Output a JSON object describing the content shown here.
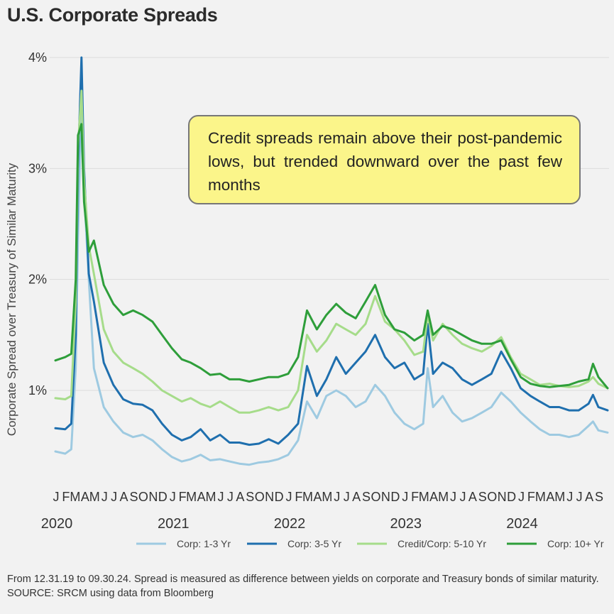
{
  "title": "U.S. Corporate Spreads",
  "annotation": "Credit spreads remain above their post-pandemic lows, but trended downward over the past few months",
  "footnote": "From 12.31.19 to 09.30.24. Spread is measured as difference between yields on corporate and Treasury bonds of similar maturity. SOURCE: SRCM using data from Bloomberg",
  "chart_data": {
    "type": "line",
    "title": "U.S. Corporate Spreads",
    "ylabel": "Corporate Spread over Treasury of Similar Maturity",
    "xlabel": "",
    "ylim": [
      0,
      4.1
    ],
    "yticks": [
      {
        "value": 1,
        "label": "1%"
      },
      {
        "value": 2,
        "label": "2%"
      },
      {
        "value": 3,
        "label": "3%"
      },
      {
        "value": 4,
        "label": "4%"
      }
    ],
    "x_range": [
      "2020-01-01",
      "2024-09-30"
    ],
    "month_ticks": [
      "J",
      "F",
      "M",
      "A",
      "M",
      "J",
      "J",
      "A",
      "S",
      "O",
      "N",
      "D",
      "J",
      "F",
      "M",
      "A",
      "M",
      "J",
      "J",
      "A",
      "S",
      "O",
      "N",
      "D",
      "J",
      "F",
      "M",
      "A",
      "M",
      "J",
      "J",
      "A",
      "S",
      "O",
      "N",
      "D",
      "J",
      "F",
      "M",
      "A",
      "M",
      "J",
      "J",
      "A",
      "S",
      "O",
      "N",
      "D",
      "J",
      "F",
      "M",
      "A",
      "M",
      "J",
      "J",
      "A",
      "S"
    ],
    "year_ticks": [
      "2020",
      "2021",
      "2022",
      "2023",
      "2024"
    ],
    "grid": "horizontal",
    "legend_position": "bottom",
    "x": [
      "2020-01-01",
      "2020-02-01",
      "2020-02-20",
      "2020-03-05",
      "2020-03-12",
      "2020-03-23",
      "2020-03-31",
      "2020-04-15",
      "2020-05-01",
      "2020-06-01",
      "2020-07-01",
      "2020-08-01",
      "2020-09-01",
      "2020-10-01",
      "2020-11-01",
      "2020-12-01",
      "2021-01-01",
      "2021-02-01",
      "2021-03-01",
      "2021-04-01",
      "2021-05-01",
      "2021-06-01",
      "2021-07-01",
      "2021-08-01",
      "2021-09-01",
      "2021-10-01",
      "2021-11-01",
      "2021-12-01",
      "2022-01-01",
      "2022-02-01",
      "2022-03-01",
      "2022-04-01",
      "2022-05-01",
      "2022-06-01",
      "2022-07-01",
      "2022-08-01",
      "2022-09-01",
      "2022-10-01",
      "2022-11-01",
      "2022-12-01",
      "2023-01-01",
      "2023-02-01",
      "2023-03-01",
      "2023-03-15",
      "2023-04-01",
      "2023-05-01",
      "2023-06-01",
      "2023-07-01",
      "2023-08-01",
      "2023-09-01",
      "2023-10-01",
      "2023-11-01",
      "2023-12-01",
      "2024-01-01",
      "2024-02-01",
      "2024-03-01",
      "2024-04-01",
      "2024-05-01",
      "2024-06-01",
      "2024-07-01",
      "2024-08-01",
      "2024-08-15",
      "2024-09-01",
      "2024-09-30"
    ],
    "series": [
      {
        "name": "Corp: 1-3 Yr",
        "color": "#9ecae1",
        "values": [
          0.45,
          0.43,
          0.47,
          1.2,
          2.4,
          3.6,
          2.8,
          2.0,
          1.2,
          0.85,
          0.72,
          0.62,
          0.58,
          0.6,
          0.55,
          0.47,
          0.4,
          0.36,
          0.38,
          0.42,
          0.37,
          0.38,
          0.36,
          0.34,
          0.33,
          0.35,
          0.36,
          0.38,
          0.42,
          0.55,
          0.9,
          0.75,
          0.95,
          1.0,
          0.95,
          0.85,
          0.9,
          1.05,
          0.95,
          0.8,
          0.7,
          0.65,
          0.7,
          1.2,
          0.85,
          0.95,
          0.8,
          0.72,
          0.75,
          0.8,
          0.85,
          0.98,
          0.9,
          0.8,
          0.72,
          0.65,
          0.6,
          0.6,
          0.58,
          0.6,
          0.68,
          0.72,
          0.64,
          0.62
        ]
      },
      {
        "name": "Corp: 3-5 Yr",
        "color": "#1f6fae",
        "values": [
          0.66,
          0.65,
          0.7,
          1.5,
          3.0,
          4.0,
          3.0,
          2.05,
          1.8,
          1.25,
          1.05,
          0.92,
          0.88,
          0.87,
          0.82,
          0.7,
          0.6,
          0.55,
          0.58,
          0.65,
          0.55,
          0.6,
          0.53,
          0.53,
          0.51,
          0.52,
          0.56,
          0.52,
          0.6,
          0.7,
          1.22,
          0.95,
          1.1,
          1.3,
          1.15,
          1.25,
          1.35,
          1.5,
          1.3,
          1.2,
          1.25,
          1.1,
          1.15,
          1.6,
          1.15,
          1.25,
          1.2,
          1.1,
          1.05,
          1.1,
          1.15,
          1.35,
          1.2,
          1.02,
          0.95,
          0.9,
          0.85,
          0.85,
          0.82,
          0.82,
          0.88,
          0.96,
          0.85,
          0.82
        ]
      },
      {
        "name": "Credit/Corp: 5-10 Yr",
        "color": "#a6dc8a",
        "values": [
          0.93,
          0.92,
          0.95,
          1.8,
          3.2,
          3.7,
          2.9,
          2.3,
          2.05,
          1.55,
          1.35,
          1.25,
          1.2,
          1.15,
          1.08,
          1.0,
          0.95,
          0.9,
          0.93,
          0.88,
          0.85,
          0.9,
          0.85,
          0.8,
          0.8,
          0.82,
          0.85,
          0.82,
          0.85,
          1.0,
          1.5,
          1.35,
          1.45,
          1.6,
          1.55,
          1.5,
          1.6,
          1.85,
          1.62,
          1.55,
          1.45,
          1.32,
          1.35,
          1.68,
          1.45,
          1.6,
          1.5,
          1.42,
          1.38,
          1.35,
          1.4,
          1.48,
          1.3,
          1.15,
          1.1,
          1.05,
          1.06,
          1.04,
          1.03,
          1.04,
          1.08,
          1.12,
          1.06,
          1.02
        ]
      },
      {
        "name": "Corp: 10+ Yr",
        "color": "#2e9e3a",
        "values": [
          1.27,
          1.3,
          1.33,
          2.0,
          3.3,
          3.4,
          2.7,
          2.25,
          2.35,
          1.95,
          1.78,
          1.68,
          1.72,
          1.68,
          1.62,
          1.5,
          1.38,
          1.28,
          1.25,
          1.2,
          1.14,
          1.15,
          1.1,
          1.1,
          1.08,
          1.1,
          1.12,
          1.12,
          1.15,
          1.3,
          1.72,
          1.55,
          1.68,
          1.78,
          1.7,
          1.65,
          1.8,
          1.95,
          1.68,
          1.55,
          1.52,
          1.45,
          1.5,
          1.72,
          1.5,
          1.58,
          1.55,
          1.5,
          1.45,
          1.42,
          1.42,
          1.45,
          1.28,
          1.12,
          1.06,
          1.04,
          1.03,
          1.04,
          1.05,
          1.08,
          1.1,
          1.24,
          1.12,
          1.02
        ]
      }
    ]
  }
}
